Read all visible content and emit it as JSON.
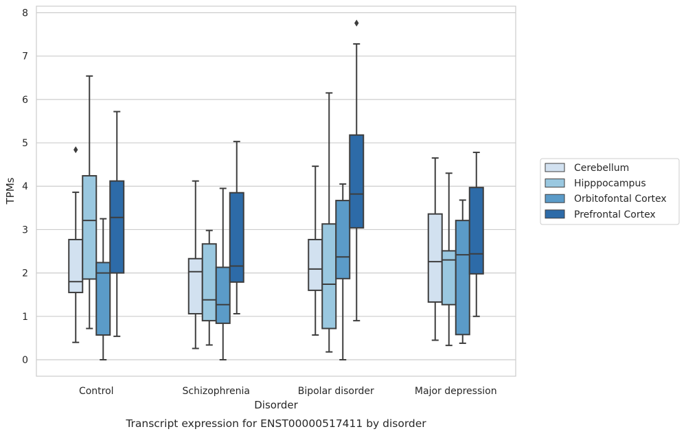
{
  "chart_data": {
    "type": "box",
    "title": "Transcript expression for ENST00000517411 by disorder",
    "xlabel": "Disorder",
    "ylabel": "TPMs",
    "ylim": [
      -0.38,
      8.15
    ],
    "yticks": [
      0,
      1,
      2,
      3,
      4,
      5,
      6,
      7,
      8
    ],
    "grid": "horizontal",
    "legend_position": "right",
    "categories": [
      "Control",
      "Schizophrenia",
      "Bipolar disorder",
      "Major depression"
    ],
    "series": [
      {
        "name": "Cerebellum",
        "color": "#d2e1f0",
        "boxes": [
          {
            "min": 0.4,
            "q1": 1.55,
            "median": 1.8,
            "q3": 2.77,
            "max": 3.86,
            "outliers": [
              4.84
            ]
          },
          {
            "min": 0.26,
            "q1": 1.06,
            "median": 2.03,
            "q3": 2.33,
            "max": 4.12,
            "outliers": []
          },
          {
            "min": 0.57,
            "q1": 1.6,
            "median": 2.09,
            "q3": 2.77,
            "max": 4.46,
            "outliers": []
          },
          {
            "min": 0.45,
            "q1": 1.33,
            "median": 2.26,
            "q3": 3.36,
            "max": 4.65,
            "outliers": []
          }
        ]
      },
      {
        "name": "Hipppocampus",
        "color": "#9ac8e0",
        "boxes": [
          {
            "min": 0.72,
            "q1": 1.86,
            "median": 3.21,
            "q3": 4.24,
            "max": 6.54,
            "outliers": []
          },
          {
            "min": 0.34,
            "q1": 0.9,
            "median": 1.38,
            "q3": 2.67,
            "max": 2.98,
            "outliers": []
          },
          {
            "min": 0.18,
            "q1": 0.72,
            "median": 1.74,
            "q3": 3.13,
            "max": 6.15,
            "outliers": []
          },
          {
            "min": 0.33,
            "q1": 1.27,
            "median": 2.3,
            "q3": 2.51,
            "max": 4.3,
            "outliers": []
          }
        ]
      },
      {
        "name": "Orbitofontal Cortex",
        "color": "#5b9bc8",
        "boxes": [
          {
            "min": 0.0,
            "q1": 0.57,
            "median": 2.0,
            "q3": 2.24,
            "max": 3.25,
            "outliers": []
          },
          {
            "min": 0.0,
            "q1": 0.84,
            "median": 1.27,
            "q3": 2.13,
            "max": 3.95,
            "outliers": []
          },
          {
            "min": 0.0,
            "q1": 1.87,
            "median": 2.37,
            "q3": 3.67,
            "max": 4.05,
            "outliers": []
          },
          {
            "min": 0.38,
            "q1": 0.58,
            "median": 2.42,
            "q3": 3.21,
            "max": 3.68,
            "outliers": []
          }
        ]
      },
      {
        "name": "Prefrontal Cortex",
        "color": "#2d6ba8",
        "boxes": [
          {
            "min": 0.54,
            "q1": 2.0,
            "median": 3.28,
            "q3": 4.12,
            "max": 5.72,
            "outliers": []
          },
          {
            "min": 1.06,
            "q1": 1.79,
            "median": 2.16,
            "q3": 3.85,
            "max": 5.03,
            "outliers": []
          },
          {
            "min": 0.9,
            "q1": 3.04,
            "median": 3.82,
            "q3": 5.18,
            "max": 7.28,
            "outliers": [
              7.76
            ]
          },
          {
            "min": 1.0,
            "q1": 1.98,
            "median": 2.44,
            "q3": 3.97,
            "max": 4.78,
            "outliers": []
          }
        ]
      }
    ]
  }
}
